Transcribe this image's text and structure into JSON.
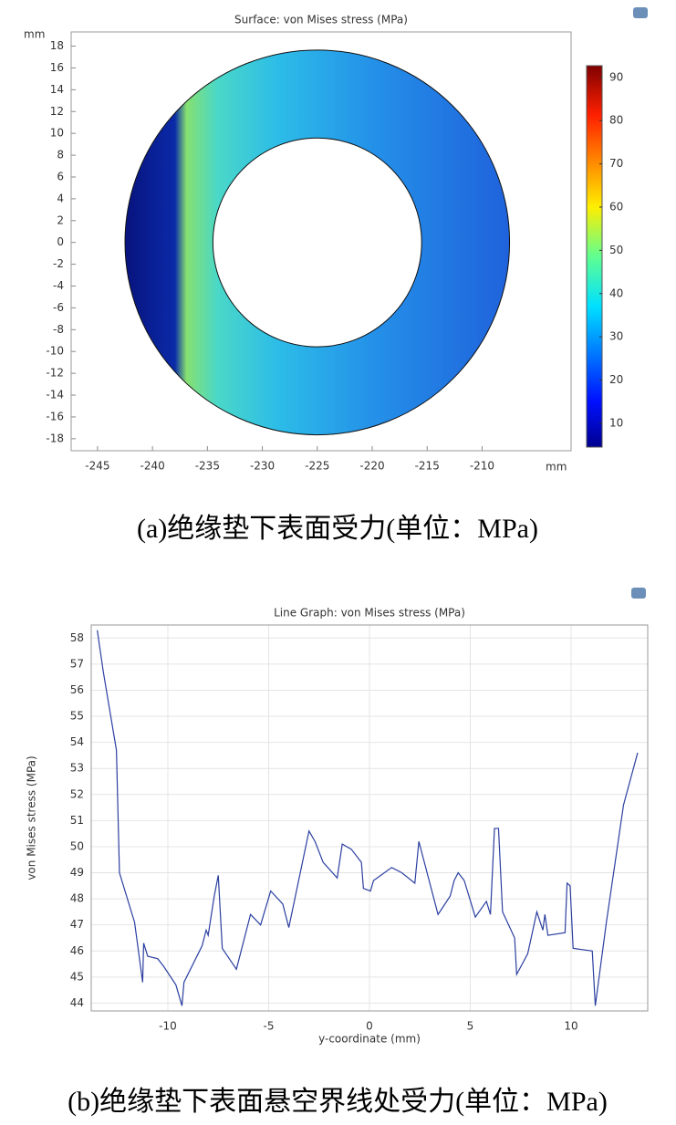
{
  "chart_data": [
    {
      "type": "surface",
      "title": "Surface: von Mises stress (MPa)",
      "xlabel": "mm",
      "ylabel": "mm",
      "xlim": [
        -247.4,
        -201.9
      ],
      "ylim": [
        -19.1,
        19.3
      ],
      "xticks": [
        -245,
        -240,
        -235,
        -230,
        -225,
        -220,
        -215,
        -210
      ],
      "yticks": [
        -18,
        -16,
        -14,
        -12,
        -10,
        -8,
        -6,
        -4,
        -2,
        0,
        2,
        4,
        6,
        8,
        10,
        12,
        14,
        16,
        18
      ],
      "center": [
        -225,
        0
      ],
      "outer_radius": 17.5,
      "inner_radius": 9.5,
      "clim": [
        4.5,
        92.7
      ],
      "cticks": [
        10,
        20,
        30,
        40,
        50,
        60,
        70,
        80,
        90
      ],
      "caption": "(a)绝缘垫下表面受力(单位：MPa)"
    },
    {
      "type": "line",
      "title": "Line Graph: von Mises stress (MPa)",
      "xlabel": "y-coordinate (mm)",
      "ylabel": "von Mises stress (MPa)",
      "xlim": [
        -13.8,
        13.8
      ],
      "ylim": [
        43.7,
        58.5
      ],
      "grid": true,
      "xticks": [
        -10,
        -5,
        0,
        5,
        10
      ],
      "yticks": [
        44,
        45,
        46,
        47,
        48,
        49,
        50,
        51,
        52,
        53,
        54,
        55,
        56,
        57,
        58
      ],
      "x": [
        -13.5,
        -13.2,
        -12.55,
        -12.4,
        -11.65,
        -11.25,
        -11.2,
        -11.0,
        -10.5,
        -10.2,
        -9.6,
        -9.3,
        -9.2,
        -8.3,
        -8.1,
        -8.0,
        -7.7,
        -7.5,
        -7.3,
        -6.6,
        -5.9,
        -5.4,
        -4.9,
        -4.3,
        -4.0,
        -3.0,
        -2.7,
        -2.3,
        -1.6,
        -1.35,
        -0.9,
        -0.4,
        -0.3,
        0.05,
        0.2,
        1.1,
        1.6,
        2.25,
        2.45,
        3.4,
        4.0,
        4.2,
        4.4,
        4.7,
        5.25,
        5.8,
        6.0,
        6.2,
        6.4,
        6.6,
        7.2,
        7.3,
        7.85,
        8.3,
        8.6,
        8.7,
        8.85,
        9.7,
        9.8,
        9.95,
        10.1,
        11.05,
        11.2,
        11.75,
        12.6,
        13.3
      ],
      "values": [
        58.3,
        56.7,
        53.7,
        49.0,
        47.1,
        44.8,
        46.3,
        45.8,
        45.7,
        45.4,
        44.7,
        43.9,
        44.8,
        46.2,
        46.8,
        46.6,
        48.1,
        48.9,
        46.1,
        45.3,
        47.4,
        47.0,
        48.3,
        47.8,
        46.9,
        50.6,
        50.2,
        49.4,
        48.8,
        50.1,
        49.9,
        49.4,
        48.4,
        48.3,
        48.7,
        49.2,
        49.0,
        48.6,
        50.2,
        47.4,
        48.1,
        48.7,
        49.0,
        48.7,
        47.3,
        47.9,
        47.4,
        50.7,
        50.7,
        47.5,
        46.5,
        45.1,
        45.9,
        47.5,
        46.8,
        47.4,
        46.6,
        46.7,
        48.6,
        48.5,
        46.1,
        46.0,
        43.9,
        47.1,
        51.6,
        53.6
      ],
      "color": "#2b3fa0",
      "caption": "(b)绝缘垫下表面悬空界线处受力(单位：MPa)"
    }
  ]
}
